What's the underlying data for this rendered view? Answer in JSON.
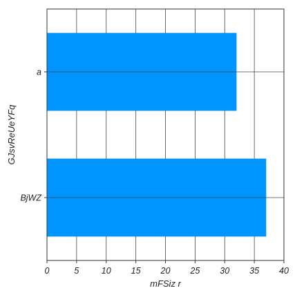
{
  "chart_data": {
    "type": "bar",
    "orientation": "horizontal",
    "title": "",
    "xlabel": "mFSiz  r",
    "ylabel": "GJsvReUeYFq",
    "categories": [
      "a",
      "BjWZ"
    ],
    "values": [
      32,
      37
    ],
    "xlim": [
      0,
      40
    ],
    "xticks": [
      0,
      5,
      10,
      15,
      20,
      25,
      30,
      35,
      40
    ],
    "grid": true,
    "bar_color": "#0094ff"
  }
}
